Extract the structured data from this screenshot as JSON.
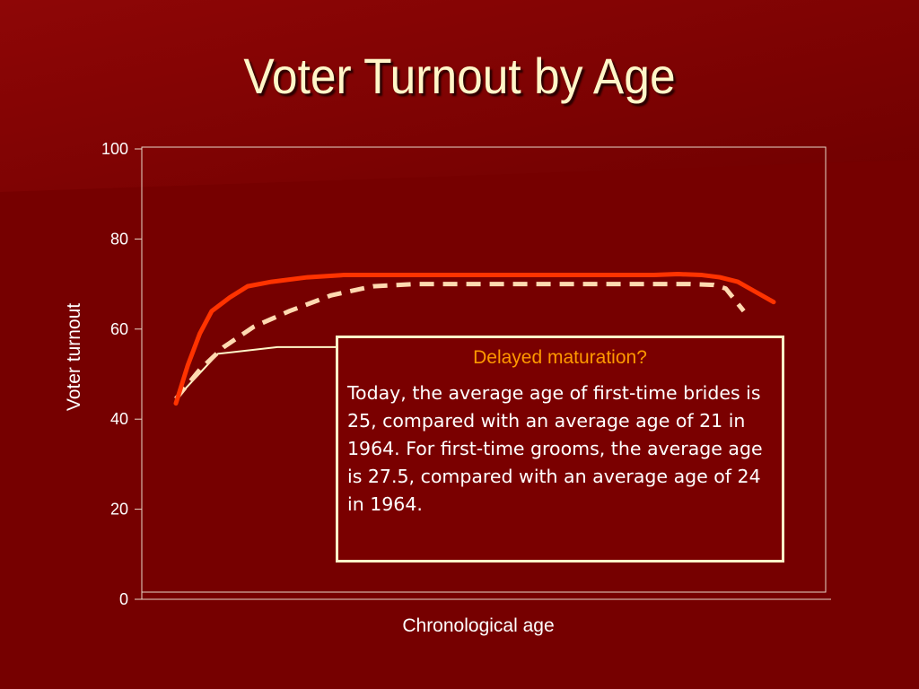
{
  "slide": {
    "title": "Voter Turnout by Age"
  },
  "annotation": {
    "heading": "Delayed maturation?",
    "body": "Today, the average age of first-time brides is 25, compared with an average age of 21 in 1964. For first-time grooms, the average age is 27.5, compared with an average age of 24 in 1964."
  },
  "colors": {
    "background": "#7a0000",
    "title": "#fff6c8",
    "solid_series": "#ff3300",
    "dashed_series": "#ffd9b0",
    "thin_series": "#fff6c8",
    "annotation_heading": "#ff9900"
  },
  "chart_data": {
    "type": "line",
    "title": "",
    "xlabel": "Chronological age",
    "ylabel": "Voter turnout",
    "ylim": [
      0,
      100
    ],
    "yticks": [
      0,
      20,
      40,
      60,
      80,
      100
    ],
    "xlim": [
      0,
      100
    ],
    "grid": false,
    "legend": "none",
    "series": [
      {
        "style": "solid",
        "x": [
          0,
          2,
          4,
          6,
          9,
          12,
          16,
          22,
          28,
          35,
          50,
          65,
          80,
          84,
          88,
          91,
          94,
          96,
          100
        ],
        "values": [
          43.5,
          52,
          59,
          64,
          67,
          69.5,
          70.5,
          71.5,
          72,
          72,
          72,
          72,
          72,
          72.2,
          72,
          71.5,
          70.5,
          69,
          66
        ]
      },
      {
        "style": "dashed",
        "x": [
          0,
          4,
          8,
          13,
          19,
          26,
          33,
          40,
          50,
          65,
          80,
          86,
          90,
          92,
          95
        ],
        "values": [
          44.5,
          51,
          56,
          60.5,
          64,
          67.5,
          69.5,
          70,
          70,
          70,
          70,
          70,
          69.8,
          69,
          64
        ]
      },
      {
        "style": "thin",
        "x": [
          0,
          7,
          17,
          27
        ],
        "values": [
          44.5,
          54.5,
          56,
          56
        ]
      }
    ]
  }
}
